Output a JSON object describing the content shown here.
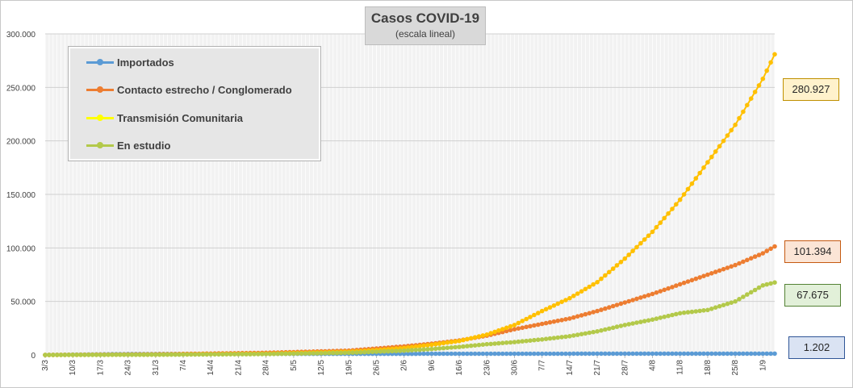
{
  "chart_data": {
    "type": "line",
    "title": "Casos  COVID-19",
    "subtitle": "(escala lineal)",
    "ylim": [
      0,
      300000
    ],
    "y_ticks": [
      "0",
      "50.000",
      "100.000",
      "150.000",
      "200.000",
      "250.000",
      "300.000"
    ],
    "y_tick_values": [
      0,
      50000,
      100000,
      150000,
      200000,
      250000,
      300000
    ],
    "x_ticks": [
      "3/3",
      "10/3",
      "17/3",
      "24/3",
      "31/3",
      "7/4",
      "14/4",
      "21/4",
      "28/4",
      "5/5",
      "12/5",
      "19/5",
      "26/5",
      "2/6",
      "9/6",
      "16/6",
      "23/6",
      "30/6",
      "7/7",
      "14/7",
      "21/7",
      "28/7",
      "4/8",
      "11/8",
      "18/8",
      "25/8",
      "1/9"
    ],
    "x_start": "3/3",
    "x_end": "4/9",
    "grid": true,
    "legend_position": "top-left",
    "series": [
      {
        "name": "Importados",
        "color": "#5b9bd5",
        "points": [
          [
            "3/3",
            0
          ],
          [
            "24/3",
            800
          ],
          [
            "14/4",
            1000
          ],
          [
            "9/6",
            1100
          ],
          [
            "16/6",
            1150
          ],
          [
            "4/9",
            1202
          ]
        ],
        "last_label": "1.202"
      },
      {
        "name": "Contacto estrecho / Conglomerado",
        "color": "#ed7d31",
        "points": [
          [
            "3/3",
            0
          ],
          [
            "31/3",
            600
          ],
          [
            "28/4",
            2000
          ],
          [
            "19/5",
            4000
          ],
          [
            "26/5",
            6000
          ],
          [
            "2/6",
            8000
          ],
          [
            "9/6",
            10500
          ],
          [
            "16/6",
            13500
          ],
          [
            "23/6",
            18000
          ],
          [
            "30/6",
            24000
          ],
          [
            "7/7",
            29000
          ],
          [
            "14/7",
            34000
          ],
          [
            "21/7",
            41000
          ],
          [
            "28/7",
            49000
          ],
          [
            "4/8",
            57000
          ],
          [
            "11/8",
            66000
          ],
          [
            "18/8",
            75000
          ],
          [
            "25/8",
            84000
          ],
          [
            "1/9",
            95000
          ],
          [
            "4/9",
            101394
          ]
        ],
        "last_label": "101.394"
      },
      {
        "name": "Transmisión Comunitaria",
        "color": "#ffc000",
        "points": [
          [
            "3/3",
            0
          ],
          [
            "31/3",
            300
          ],
          [
            "28/4",
            1200
          ],
          [
            "19/5",
            3000
          ],
          [
            "26/5",
            4500
          ],
          [
            "2/6",
            6500
          ],
          [
            "9/6",
            9500
          ],
          [
            "16/6",
            13000
          ],
          [
            "23/6",
            19000
          ],
          [
            "30/6",
            28000
          ],
          [
            "7/7",
            41000
          ],
          [
            "14/7",
            53000
          ],
          [
            "21/7",
            68000
          ],
          [
            "28/7",
            90000
          ],
          [
            "4/8",
            115000
          ],
          [
            "11/8",
            145000
          ],
          [
            "18/8",
            180000
          ],
          [
            "25/8",
            215000
          ],
          [
            "1/9",
            258000
          ],
          [
            "4/9",
            280927
          ]
        ],
        "last_label": "280.927"
      },
      {
        "name": "En estudio",
        "color": "#b3c94a",
        "points": [
          [
            "3/3",
            0
          ],
          [
            "31/3",
            200
          ],
          [
            "28/4",
            800
          ],
          [
            "19/5",
            2000
          ],
          [
            "26/5",
            3000
          ],
          [
            "2/6",
            4000
          ],
          [
            "9/6",
            5500
          ],
          [
            "16/6",
            7500
          ],
          [
            "23/6",
            10000
          ],
          [
            "30/6",
            12000
          ],
          [
            "7/7",
            14500
          ],
          [
            "14/7",
            17500
          ],
          [
            "21/7",
            22000
          ],
          [
            "28/7",
            28000
          ],
          [
            "4/8",
            33000
          ],
          [
            "11/8",
            39000
          ],
          [
            "18/8",
            42000
          ],
          [
            "25/8",
            50000
          ],
          [
            "1/9",
            65000
          ],
          [
            "4/9",
            67675
          ]
        ],
        "last_label": "67.675"
      }
    ]
  },
  "legend": [
    {
      "label": "Importados",
      "color": "#5b9bd5"
    },
    {
      "label": "Contacto estrecho / Conglomerado",
      "color": "#ed7d31"
    },
    {
      "label": "Transmisión Comunitaria",
      "color": "#ffff00"
    },
    {
      "label": "En estudio",
      "color": "#b3c94a"
    }
  ],
  "callouts": [
    {
      "value": "280.927",
      "bg": "#fff2cc",
      "border": "#bf9000"
    },
    {
      "value": "101.394",
      "bg": "#fbe5d6",
      "border": "#c55a11"
    },
    {
      "value": "67.675",
      "bg": "#e2f0d9",
      "border": "#548235"
    },
    {
      "value": "1.202",
      "bg": "#dae3f3",
      "border": "#2f5597"
    }
  ]
}
